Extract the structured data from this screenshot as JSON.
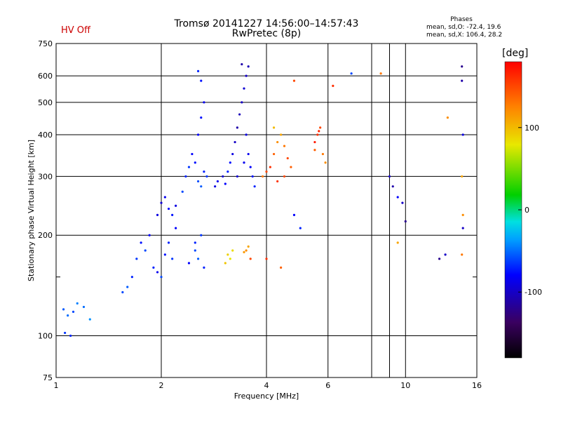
{
  "header": {
    "status": "HV Off",
    "title_line1": "Tromsø 20141227 14:56:00–14:57:43",
    "title_line2": "RwPretec (8p)",
    "phase_stats_title": "Phases",
    "phase_stats_o": "mean, sd,O: -72.4, 19.6",
    "phase_stats_x": "mean, sd,X: 106.4, 28.2"
  },
  "colorbar": {
    "unit": "[deg]",
    "ticks": [
      "100",
      "0",
      "-100"
    ],
    "tick_values": [
      100,
      0,
      -100
    ],
    "range": [
      -180,
      180
    ]
  },
  "chart_data": {
    "type": "scatter",
    "xlabel": "Frequency [MHz]",
    "ylabel": "Stationary phase Virtual Height [km]",
    "xscale": "log",
    "yscale": "log",
    "xlim": [
      1,
      16
    ],
    "ylim": [
      75,
      750
    ],
    "x_ticks": [
      1,
      2,
      4,
      6,
      10,
      16
    ],
    "x_minor": [
      8,
      9
    ],
    "y_ticks": [
      75,
      100,
      200,
      300,
      400,
      500,
      600,
      750
    ],
    "y_minor": [
      150
    ],
    "grid": true,
    "color_scale": "phase in degrees, rainbow colormap (-180 black/purple, -100 blue, 0 green, 100 yellow, 180 red)",
    "series": [
      {
        "points": [
          [
            1.05,
            120,
            -55
          ],
          [
            1.08,
            115,
            -50
          ],
          [
            1.12,
            118,
            -60
          ],
          [
            1.15,
            125,
            -45
          ],
          [
            1.1,
            100,
            -70
          ],
          [
            1.06,
            102,
            -65
          ],
          [
            1.2,
            122,
            -50
          ],
          [
            1.25,
            112,
            -40
          ],
          [
            1.55,
            135,
            -60
          ],
          [
            1.6,
            140,
            -55
          ],
          [
            1.65,
            150,
            -70
          ],
          [
            1.7,
            170,
            -65
          ],
          [
            1.75,
            190,
            -75
          ],
          [
            1.8,
            180,
            -60
          ],
          [
            1.85,
            200,
            -80
          ],
          [
            1.9,
            160,
            -70
          ],
          [
            1.95,
            155,
            -85
          ],
          [
            2.0,
            150,
            -60
          ],
          [
            2.05,
            175,
            -75
          ],
          [
            2.1,
            190,
            -70
          ],
          [
            2.15,
            170,
            -65
          ],
          [
            2.2,
            210,
            -80
          ],
          [
            1.95,
            230,
            -90
          ],
          [
            2.0,
            250,
            -95
          ],
          [
            2.05,
            260,
            -85
          ],
          [
            2.1,
            240,
            -80
          ],
          [
            2.15,
            230,
            -75
          ],
          [
            2.2,
            245,
            -90
          ],
          [
            2.3,
            270,
            -60
          ],
          [
            2.35,
            300,
            -70
          ],
          [
            2.4,
            320,
            -65
          ],
          [
            2.45,
            350,
            -80
          ],
          [
            2.5,
            330,
            -75
          ],
          [
            2.55,
            290,
            -60
          ],
          [
            2.6,
            280,
            -55
          ],
          [
            2.65,
            310,
            -70
          ],
          [
            2.7,
            300,
            -65
          ],
          [
            2.55,
            400,
            -80
          ],
          [
            2.6,
            450,
            -75
          ],
          [
            2.65,
            500,
            -85
          ],
          [
            2.55,
            620,
            -70
          ],
          [
            2.6,
            580,
            -75
          ],
          [
            2.5,
            180,
            -60
          ],
          [
            2.55,
            170,
            -55
          ],
          [
            2.6,
            200,
            -65
          ],
          [
            2.65,
            160,
            -70
          ],
          [
            2.4,
            165,
            -80
          ],
          [
            2.5,
            190,
            -70
          ],
          [
            2.85,
            280,
            -90
          ],
          [
            2.9,
            290,
            -85
          ],
          [
            3.0,
            300,
            -95
          ],
          [
            3.05,
            285,
            -80
          ],
          [
            3.1,
            310,
            -70
          ],
          [
            3.15,
            330,
            -75
          ],
          [
            3.2,
            350,
            -90
          ],
          [
            3.25,
            380,
            -100
          ],
          [
            3.3,
            420,
            -110
          ],
          [
            3.35,
            460,
            -105
          ],
          [
            3.4,
            500,
            -100
          ],
          [
            3.45,
            550,
            -95
          ],
          [
            3.5,
            600,
            -100
          ],
          [
            3.55,
            640,
            -105
          ],
          [
            3.4,
            650,
            -110
          ],
          [
            3.5,
            400,
            -90
          ],
          [
            3.55,
            350,
            -85
          ],
          [
            3.6,
            320,
            -80
          ],
          [
            3.65,
            300,
            -75
          ],
          [
            3.7,
            280,
            -70
          ],
          [
            3.3,
            300,
            -95
          ],
          [
            3.45,
            330,
            -85
          ],
          [
            3.1,
            175,
            90
          ],
          [
            3.15,
            170,
            80
          ],
          [
            3.2,
            180,
            85
          ],
          [
            3.05,
            165,
            95
          ],
          [
            3.5,
            180,
            120
          ],
          [
            3.55,
            185,
            110
          ],
          [
            3.6,
            170,
            150
          ],
          [
            3.45,
            178,
            115
          ],
          [
            3.9,
            300,
            130
          ],
          [
            4.0,
            310,
            150
          ],
          [
            4.1,
            320,
            160
          ],
          [
            4.2,
            350,
            140
          ],
          [
            4.3,
            380,
            120
          ],
          [
            4.4,
            400,
            110
          ],
          [
            4.5,
            370,
            130
          ],
          [
            4.6,
            340,
            150
          ],
          [
            4.7,
            320,
            140
          ],
          [
            4.2,
            420,
            100
          ],
          [
            4.3,
            290,
            160
          ],
          [
            4.5,
            300,
            150
          ],
          [
            5.5,
            380,
            170
          ],
          [
            5.6,
            400,
            160
          ],
          [
            5.7,
            420,
            150
          ],
          [
            5.8,
            350,
            130
          ],
          [
            5.9,
            330,
            120
          ],
          [
            5.5,
            360,
            140
          ],
          [
            5.65,
            410,
            165
          ],
          [
            4.8,
            230,
            -80
          ],
          [
            5.0,
            210,
            -70
          ],
          [
            4.8,
            580,
            150
          ],
          [
            4.0,
            170,
            160
          ],
          [
            4.4,
            160,
            140
          ],
          [
            6.2,
            560,
            160
          ],
          [
            7.0,
            610,
            -60
          ],
          [
            8.5,
            610,
            130
          ],
          [
            9.0,
            300,
            -100
          ],
          [
            9.2,
            280,
            -110
          ],
          [
            9.5,
            260,
            -80
          ],
          [
            9.8,
            250,
            -100
          ],
          [
            10.0,
            220,
            -120
          ],
          [
            9.5,
            190,
            110
          ],
          [
            12.5,
            170,
            -120
          ],
          [
            13.0,
            175,
            -100
          ],
          [
            14.5,
            640,
            -120
          ],
          [
            14.5,
            580,
            -110
          ],
          [
            14.6,
            400,
            -90
          ],
          [
            13.2,
            450,
            120
          ],
          [
            14.5,
            300,
            110
          ],
          [
            14.6,
            230,
            120
          ],
          [
            14.5,
            175,
            130
          ],
          [
            14.6,
            210,
            -100
          ]
        ]
      }
    ]
  }
}
